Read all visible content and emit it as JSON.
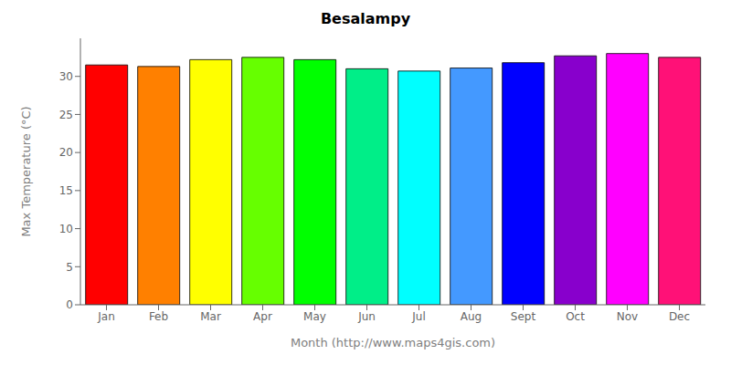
{
  "chart_data": {
    "type": "bar",
    "title": "Besalampy",
    "xlabel": "Month (http://www.maps4gis.com)",
    "ylabel": "Max Temperature (°C)",
    "categories": [
      "Jan",
      "Feb",
      "Mar",
      "Apr",
      "May",
      "Jun",
      "Jul",
      "Aug",
      "Sept",
      "Oct",
      "Nov",
      "Dec"
    ],
    "values": [
      31.5,
      31.3,
      32.2,
      32.5,
      32.2,
      31.0,
      30.7,
      31.1,
      31.8,
      32.7,
      33.0,
      32.5
    ],
    "colors": [
      "#ff0000",
      "#ff8000",
      "#ffff00",
      "#66ff00",
      "#00ff00",
      "#00ee88",
      "#00ffff",
      "#4499ff",
      "#0000ff",
      "#8800cc",
      "#ff00ff",
      "#ff1177"
    ],
    "ylim": [
      0,
      35
    ],
    "yticks": [
      0,
      5,
      10,
      15,
      20,
      25,
      30
    ],
    "grid": false
  }
}
